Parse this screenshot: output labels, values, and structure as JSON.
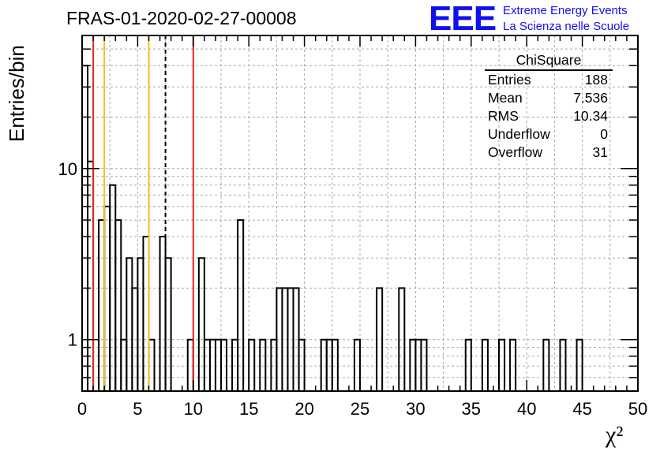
{
  "header": {
    "run_title": "FRAS-01-2020-02-27-00008",
    "logo_mark": "EEE",
    "logo_line1": "Extreme Energy Events",
    "logo_line2": "La Scienza nelle Scuole",
    "logo_color": "#1010ee"
  },
  "stats_box": {
    "name": "ChiSquare",
    "rows": [
      {
        "label": "Entries",
        "value": "188"
      },
      {
        "label": "Mean",
        "value": "7.536"
      },
      {
        "label": "RMS",
        "value": "10.34"
      },
      {
        "label": "Underflow",
        "value": "0"
      },
      {
        "label": "Overflow",
        "value": "31"
      }
    ]
  },
  "chart_data": {
    "type": "histogram",
    "xlabel": "χ²",
    "ylabel": "Entries/bin",
    "xlim": [
      0,
      50
    ],
    "ylim": [
      0.5,
      60
    ],
    "y_scale": "log",
    "grid": true,
    "bin_width": 0.5,
    "x_ticks": [
      0,
      5,
      10,
      15,
      20,
      25,
      30,
      35,
      40,
      45,
      50
    ],
    "y_tick_labels": [
      1,
      10
    ],
    "bins": [
      {
        "x": 0.0,
        "count": 40
      },
      {
        "x": 0.5,
        "count": 11
      },
      {
        "x": 1.5,
        "count": 5
      },
      {
        "x": 2.0,
        "count": 6
      },
      {
        "x": 2.5,
        "count": 8
      },
      {
        "x": 3.0,
        "count": 5
      },
      {
        "x": 3.5,
        "count": 1
      },
      {
        "x": 4.0,
        "count": 3
      },
      {
        "x": 4.5,
        "count": 2
      },
      {
        "x": 5.0,
        "count": 3
      },
      {
        "x": 5.5,
        "count": 4
      },
      {
        "x": 6.0,
        "count": 1
      },
      {
        "x": 7.0,
        "count": 4
      },
      {
        "x": 7.5,
        "count": 3
      },
      {
        "x": 9.5,
        "count": 1
      },
      {
        "x": 10.5,
        "count": 3
      },
      {
        "x": 11.0,
        "count": 1
      },
      {
        "x": 11.5,
        "count": 1
      },
      {
        "x": 12.0,
        "count": 1
      },
      {
        "x": 12.5,
        "count": 1
      },
      {
        "x": 13.5,
        "count": 1
      },
      {
        "x": 14.0,
        "count": 5
      },
      {
        "x": 15.0,
        "count": 1
      },
      {
        "x": 16.0,
        "count": 1
      },
      {
        "x": 17.0,
        "count": 1
      },
      {
        "x": 17.5,
        "count": 2
      },
      {
        "x": 18.0,
        "count": 2
      },
      {
        "x": 18.5,
        "count": 2
      },
      {
        "x": 19.0,
        "count": 2
      },
      {
        "x": 19.5,
        "count": 1
      },
      {
        "x": 21.5,
        "count": 1
      },
      {
        "x": 22.0,
        "count": 1
      },
      {
        "x": 22.5,
        "count": 1
      },
      {
        "x": 24.5,
        "count": 1
      },
      {
        "x": 26.5,
        "count": 2
      },
      {
        "x": 28.5,
        "count": 2
      },
      {
        "x": 29.5,
        "count": 1
      },
      {
        "x": 30.0,
        "count": 1
      },
      {
        "x": 30.5,
        "count": 1
      },
      {
        "x": 34.5,
        "count": 1
      },
      {
        "x": 36.0,
        "count": 1
      },
      {
        "x": 37.5,
        "count": 1
      },
      {
        "x": 38.5,
        "count": 1
      },
      {
        "x": 41.5,
        "count": 1
      },
      {
        "x": 43.0,
        "count": 1
      },
      {
        "x": 44.5,
        "count": 1
      }
    ],
    "vertical_lines": [
      {
        "x": 1.0,
        "color": "#e8261e",
        "style": "solid"
      },
      {
        "x": 2.0,
        "color": "#f2c21c",
        "style": "solid"
      },
      {
        "x": 6.0,
        "color": "#f2c21c",
        "style": "solid"
      },
      {
        "x": 7.5,
        "color": "#000000",
        "style": "dashed"
      },
      {
        "x": 10.0,
        "color": "#e8261e",
        "style": "solid"
      }
    ]
  }
}
